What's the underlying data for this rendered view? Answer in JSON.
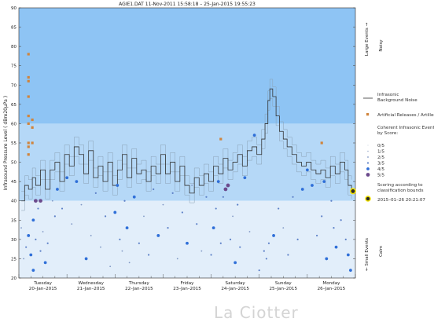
{
  "chart_data": {
    "type": "line",
    "title": "AGIE1.DAT   11-Nov-2011 15:58:18   –   25-Jan-2015 19:55:23",
    "ylabel": "Infrasound Pressure Level   ( dBre20µPa )",
    "ylim": [
      20,
      90
    ],
    "yticks": [
      20,
      25,
      30,
      35,
      40,
      45,
      50,
      55,
      60,
      65,
      70,
      75,
      80,
      85,
      90
    ],
    "xlim": [
      0,
      7
    ],
    "x_day_labels": [
      {
        "day": "Tuesday",
        "date": "20–Jan–2015"
      },
      {
        "day": "Wednesday",
        "date": "21–Jan–2015"
      },
      {
        "day": "Thursday",
        "date": "22–Jan–2015"
      },
      {
        "day": "Friday",
        "date": "23–Jan–2015"
      },
      {
        "day": "Saturday",
        "date": "24–Jan–2015"
      },
      {
        "day": "Sunday",
        "date": "25–Jan–2015"
      },
      {
        "day": "Monday",
        "date": "26–Jan–2015"
      }
    ],
    "bands": [
      {
        "from": 60,
        "to": 90,
        "color": "#8ec4f4"
      },
      {
        "from": 40,
        "to": 60,
        "color": "#b5d8f7"
      },
      {
        "from": 20,
        "to": 40,
        "color": "#e2eefa"
      }
    ],
    "side_labels": {
      "large_events": "Large Events →",
      "noisy": "Noisy",
      "small_events": "← Small Events",
      "calm": "Calm"
    },
    "series": [
      {
        "name": "Infrasonic Background Noise",
        "color": "#333333",
        "points": [
          [
            0.05,
            40
          ],
          [
            0.12,
            44
          ],
          [
            0.2,
            43
          ],
          [
            0.28,
            46
          ],
          [
            0.35,
            44
          ],
          [
            0.45,
            48
          ],
          [
            0.55,
            43
          ],
          [
            0.65,
            48
          ],
          [
            0.75,
            50
          ],
          [
            0.85,
            45
          ],
          [
            0.95,
            52
          ],
          [
            1.05,
            49
          ],
          [
            1.15,
            54
          ],
          [
            1.25,
            52
          ],
          [
            1.35,
            47
          ],
          [
            1.45,
            53
          ],
          [
            1.55,
            46
          ],
          [
            1.65,
            49
          ],
          [
            1.75,
            45
          ],
          [
            1.85,
            50
          ],
          [
            1.95,
            44
          ],
          [
            2.05,
            48
          ],
          [
            2.15,
            52
          ],
          [
            2.25,
            46
          ],
          [
            2.35,
            51
          ],
          [
            2.45,
            47
          ],
          [
            2.55,
            48
          ],
          [
            2.65,
            45
          ],
          [
            2.75,
            49
          ],
          [
            2.85,
            47
          ],
          [
            2.95,
            52
          ],
          [
            3.05,
            47
          ],
          [
            3.15,
            50
          ],
          [
            3.25,
            45
          ],
          [
            3.35,
            49
          ],
          [
            3.45,
            44
          ],
          [
            3.55,
            42
          ],
          [
            3.65,
            46
          ],
          [
            3.75,
            44
          ],
          [
            3.85,
            47
          ],
          [
            3.95,
            45
          ],
          [
            4.05,
            49
          ],
          [
            4.15,
            47
          ],
          [
            4.25,
            51
          ],
          [
            4.35,
            48
          ],
          [
            4.45,
            50
          ],
          [
            4.55,
            52
          ],
          [
            4.65,
            49
          ],
          [
            4.75,
            53
          ],
          [
            4.85,
            54
          ],
          [
            4.95,
            52
          ],
          [
            5.05,
            56
          ],
          [
            5.12,
            60
          ],
          [
            5.18,
            66
          ],
          [
            5.22,
            69
          ],
          [
            5.28,
            67
          ],
          [
            5.35,
            62
          ],
          [
            5.42,
            58
          ],
          [
            5.5,
            56
          ],
          [
            5.58,
            54
          ],
          [
            5.68,
            52
          ],
          [
            5.78,
            50
          ],
          [
            5.88,
            49
          ],
          [
            5.98,
            50
          ],
          [
            6.08,
            48
          ],
          [
            6.18,
            47
          ],
          [
            6.28,
            48
          ],
          [
            6.38,
            46
          ],
          [
            6.48,
            49
          ],
          [
            6.58,
            47
          ],
          [
            6.68,
            50
          ],
          [
            6.78,
            48
          ],
          [
            6.85,
            44
          ],
          [
            6.92,
            43
          ]
        ]
      }
    ],
    "artificial_releases": {
      "name": "Artificial Releases / Artillery",
      "color": "#d0843c",
      "points": [
        [
          0.2,
          78
        ],
        [
          0.2,
          72
        ],
        [
          0.2,
          71
        ],
        [
          0.2,
          67
        ],
        [
          0.2,
          62
        ],
        [
          0.2,
          60
        ],
        [
          0.2,
          55
        ],
        [
          0.2,
          54
        ],
        [
          0.28,
          61
        ],
        [
          0.28,
          59
        ],
        [
          0.28,
          55
        ],
        [
          0.2,
          52
        ],
        [
          4.2,
          56
        ],
        [
          6.3,
          55
        ]
      ]
    },
    "coherent_events": {
      "title": "Coherent Infrasonic Events, by Score:",
      "score_labels": [
        "0/5",
        "1/5",
        "2/5",
        "3/5",
        "4/5",
        "5/5"
      ],
      "scoring_note": "Scoring according to classification bounds",
      "points": [
        [
          0.05,
          33,
          2
        ],
        [
          0.1,
          25,
          2
        ],
        [
          0.15,
          28,
          3
        ],
        [
          0.2,
          31,
          4
        ],
        [
          0.25,
          26,
          4
        ],
        [
          0.3,
          35,
          4
        ],
        [
          0.35,
          30,
          3
        ],
        [
          0.4,
          38,
          3
        ],
        [
          0.45,
          27,
          3
        ],
        [
          0.5,
          32,
          2
        ],
        [
          0.55,
          24,
          4
        ],
        [
          0.6,
          29,
          3
        ],
        [
          0.7,
          40,
          2
        ],
        [
          0.75,
          36,
          3
        ],
        [
          0.3,
          22,
          4
        ],
        [
          0.35,
          40,
          5
        ],
        [
          0.45,
          40,
          5
        ],
        [
          0.8,
          43,
          4
        ],
        [
          0.9,
          38,
          3
        ],
        [
          1.0,
          46,
          4
        ],
        [
          1.1,
          34,
          2
        ],
        [
          1.2,
          45,
          4
        ],
        [
          1.3,
          39,
          2
        ],
        [
          1.4,
          25,
          4
        ],
        [
          1.5,
          31,
          2
        ],
        [
          1.6,
          42,
          3
        ],
        [
          1.7,
          28,
          2
        ],
        [
          1.8,
          36,
          3
        ],
        [
          1.9,
          23,
          2
        ],
        [
          2.0,
          37,
          4
        ],
        [
          2.05,
          44,
          4
        ],
        [
          2.1,
          30,
          3
        ],
        [
          2.15,
          27,
          2
        ],
        [
          2.2,
          40,
          3
        ],
        [
          2.25,
          33,
          4
        ],
        [
          2.3,
          24,
          2
        ],
        [
          2.4,
          41,
          4
        ],
        [
          2.5,
          29,
          3
        ],
        [
          2.6,
          36,
          2
        ],
        [
          2.7,
          26,
          3
        ],
        [
          2.8,
          43,
          3
        ],
        [
          2.9,
          31,
          4
        ],
        [
          3.0,
          39,
          2
        ],
        [
          3.1,
          33,
          3
        ],
        [
          3.2,
          42,
          3
        ],
        [
          3.3,
          25,
          2
        ],
        [
          3.4,
          37,
          3
        ],
        [
          3.5,
          29,
          4
        ],
        [
          3.6,
          44,
          2
        ],
        [
          3.7,
          34,
          3
        ],
        [
          3.8,
          27,
          2
        ],
        [
          3.9,
          41,
          3
        ],
        [
          4.0,
          26,
          3
        ],
        [
          4.05,
          33,
          4
        ],
        [
          4.1,
          38,
          3
        ],
        [
          4.15,
          45,
          4
        ],
        [
          4.2,
          29,
          3
        ],
        [
          4.25,
          41,
          3
        ],
        [
          4.3,
          43,
          5
        ],
        [
          4.35,
          44,
          5
        ],
        [
          4.4,
          30,
          3
        ],
        [
          4.45,
          36,
          2
        ],
        [
          4.5,
          24,
          4
        ],
        [
          4.55,
          39,
          3
        ],
        [
          4.6,
          28,
          3
        ],
        [
          4.7,
          46,
          4
        ],
        [
          4.8,
          32,
          2
        ],
        [
          4.9,
          57,
          4
        ],
        [
          5.0,
          22,
          3
        ],
        [
          5.1,
          27,
          3
        ],
        [
          5.15,
          25,
          3
        ],
        [
          5.2,
          29,
          3
        ],
        [
          5.3,
          31,
          4
        ],
        [
          5.4,
          38,
          3
        ],
        [
          5.5,
          33,
          2
        ],
        [
          5.6,
          26,
          3
        ],
        [
          5.7,
          41,
          3
        ],
        [
          5.8,
          30,
          3
        ],
        [
          5.9,
          43,
          4
        ],
        [
          6.0,
          48,
          4
        ],
        [
          6.1,
          44,
          4
        ],
        [
          6.2,
          31,
          3
        ],
        [
          6.3,
          36,
          3
        ],
        [
          6.35,
          45,
          4
        ],
        [
          6.4,
          25,
          4
        ],
        [
          6.5,
          40,
          3
        ],
        [
          6.55,
          33,
          3
        ],
        [
          6.6,
          28,
          4
        ],
        [
          6.7,
          35,
          3
        ],
        [
          6.8,
          30,
          3
        ],
        [
          6.85,
          26,
          4
        ],
        [
          6.9,
          22,
          4
        ]
      ]
    },
    "latest_event": {
      "label": "2015–01–26 20:21:07",
      "x": 6.95,
      "y": 42.5
    }
  },
  "legend": {
    "background_noise": "Infrasonic\nBackground Noise",
    "artificial": "Artificial Releases / Artillery",
    "coherent_title": "Coherent Infrasonic Events,\nby Score:",
    "scoring_note": "Scoring according to\nclassification bounds",
    "latest": "2015–01–26 20:21:07"
  },
  "watermark": "La Ciotter"
}
